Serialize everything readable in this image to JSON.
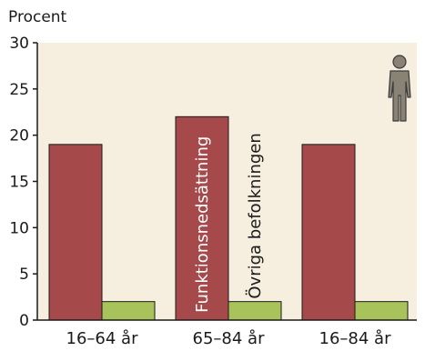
{
  "chart_data": {
    "type": "bar",
    "ylabel": "Procent",
    "ylim": [
      0,
      30
    ],
    "yticks": [
      0,
      5,
      10,
      15,
      20,
      25,
      30
    ],
    "categories": [
      "16–64 år",
      "65–84 år",
      "16–84 år"
    ],
    "series": [
      {
        "name": "Funktionsnedsättning",
        "color": "#a5494b",
        "values": [
          19,
          22,
          19
        ]
      },
      {
        "name": "Övriga befolkningen",
        "color": "#a8c35a",
        "values": [
          2,
          2,
          2
        ]
      }
    ],
    "series_labels_on_category": 1,
    "plot_background": "#f6efdf",
    "grid": false,
    "legend": "none",
    "icon": "person-icon"
  }
}
